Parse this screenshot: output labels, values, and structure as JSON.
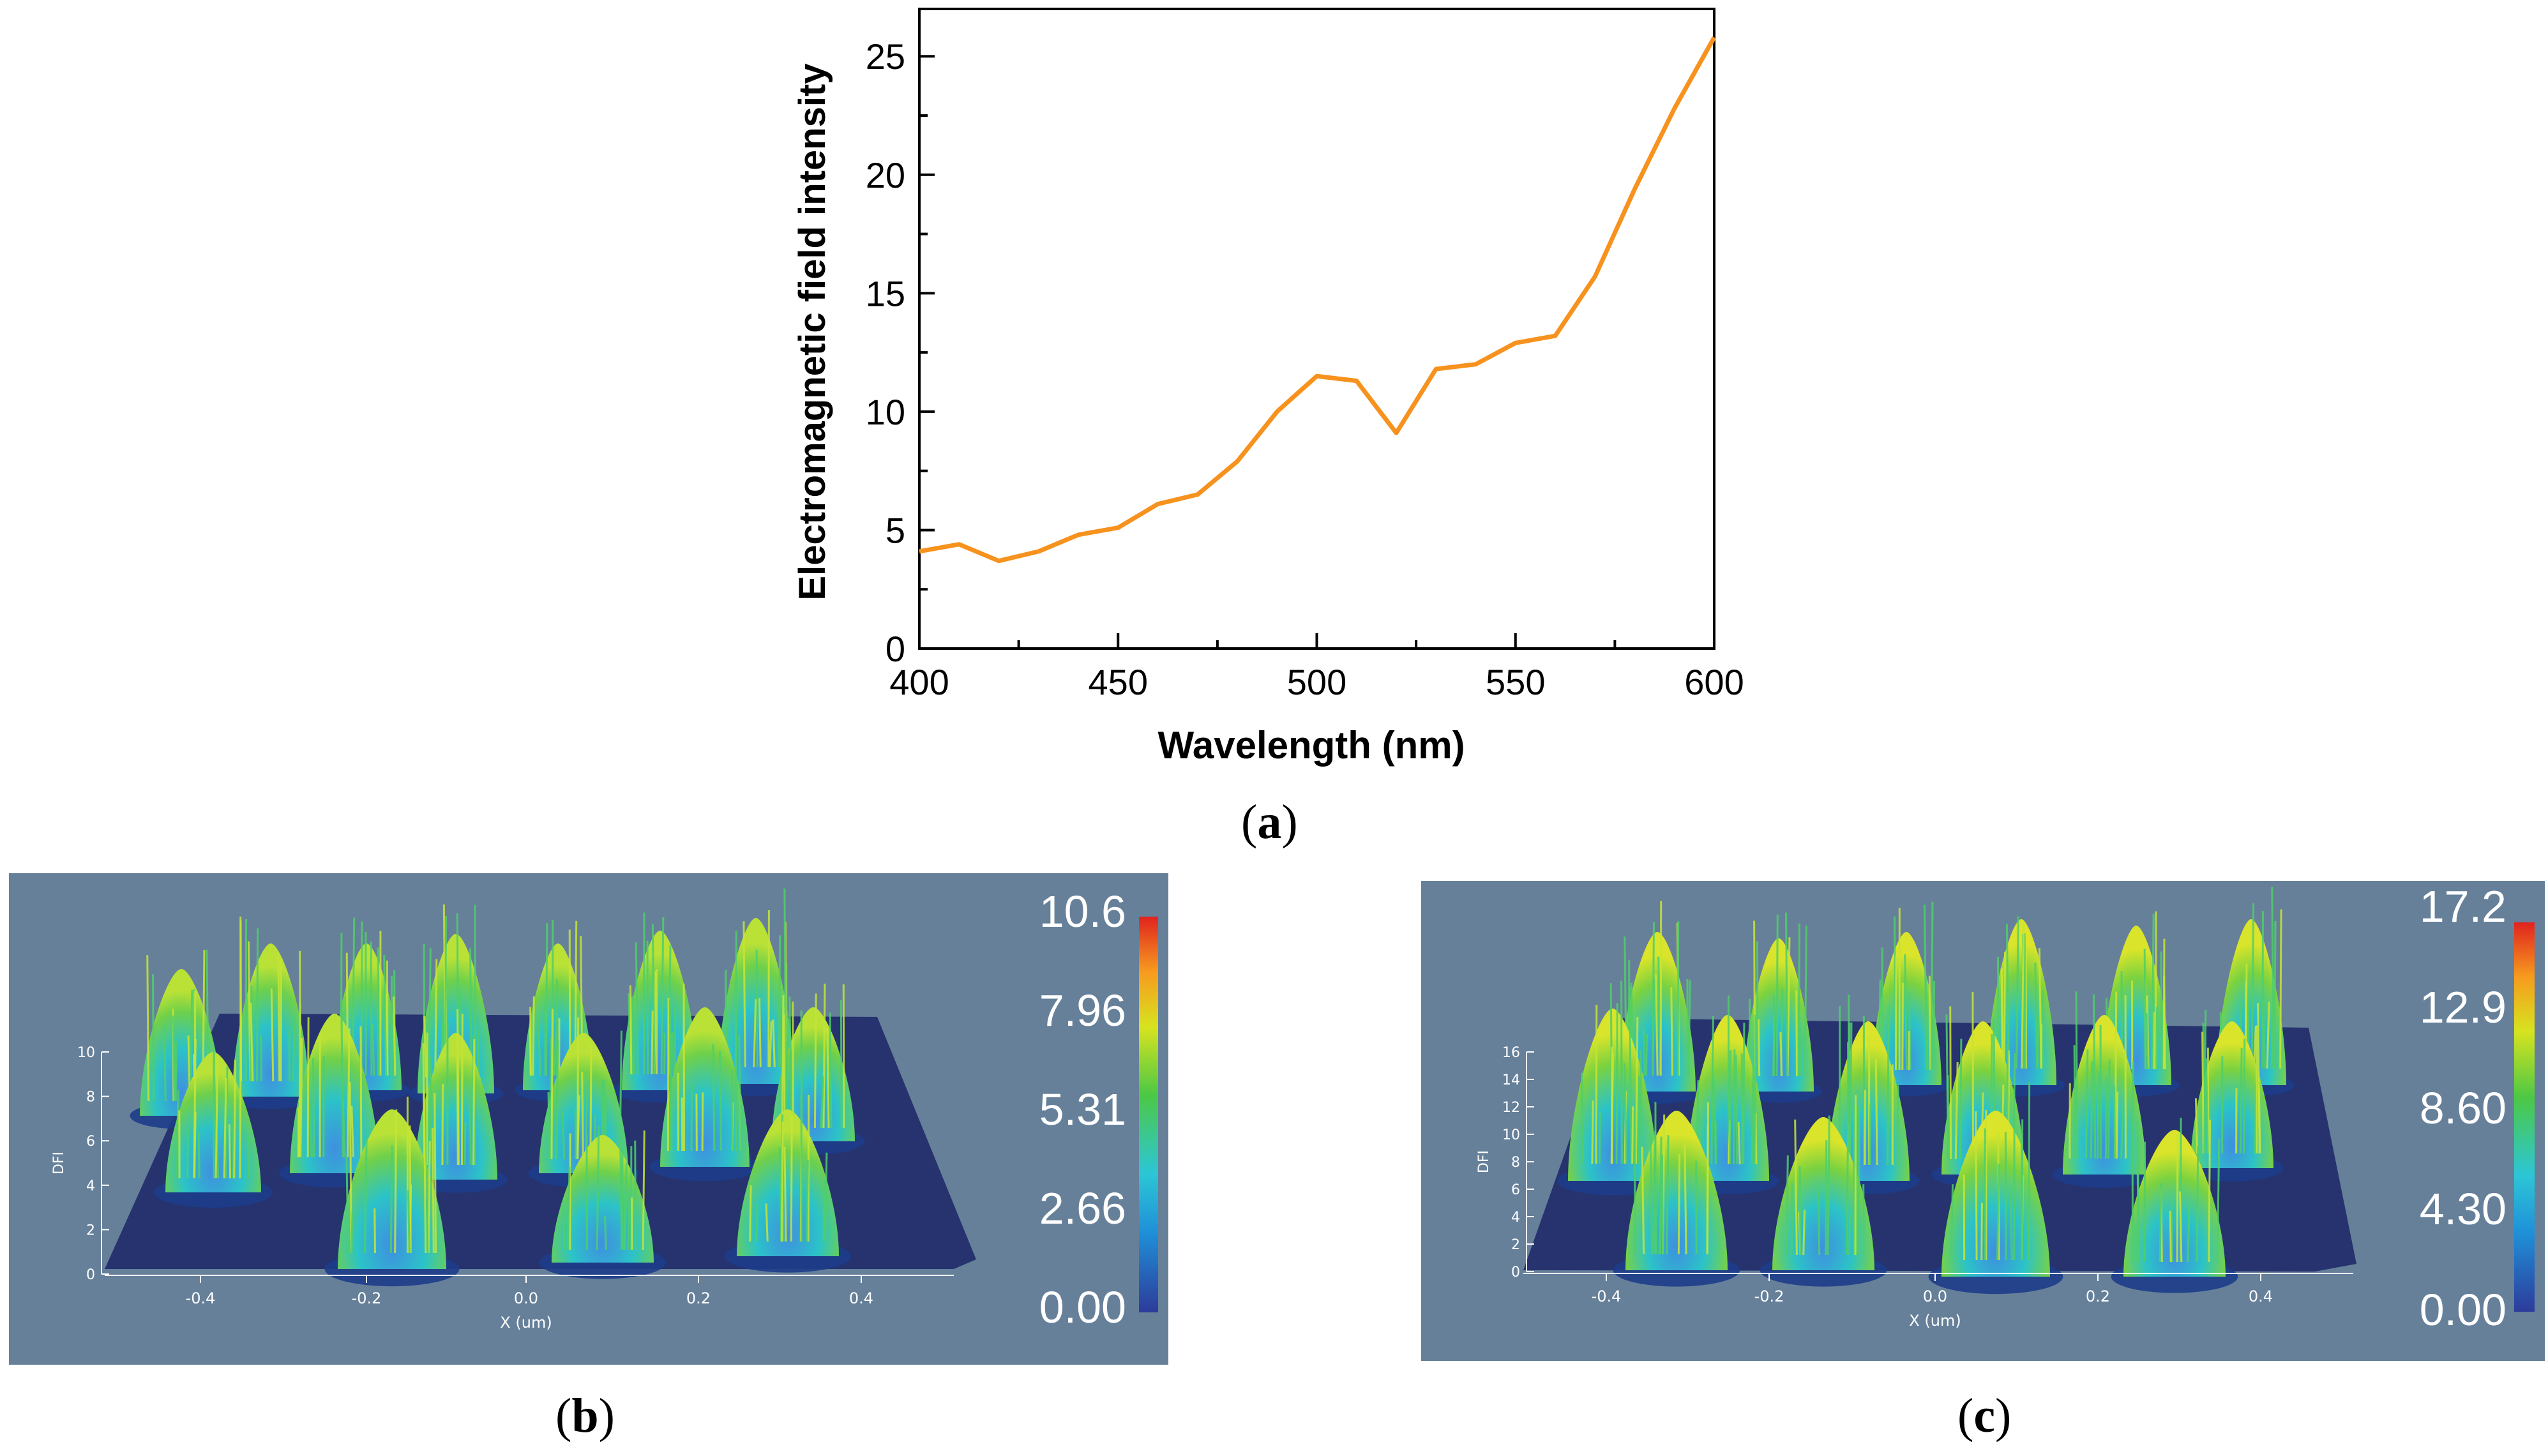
{
  "colors": {
    "line": "#f7921e",
    "panel_bg": "#66809a",
    "axis": "#000000"
  },
  "chart_data": [
    {
      "panel": "a",
      "type": "line",
      "title": "",
      "xlabel": "Wavelength (nm)",
      "ylabel": "Electromagnetic field intensity",
      "xlim": [
        400,
        600
      ],
      "ylim": [
        0,
        27
      ],
      "xticks": [
        400,
        450,
        500,
        550,
        600
      ],
      "yticks": [
        0,
        5,
        10,
        15,
        20,
        25
      ],
      "grid": false,
      "series": [
        {
          "x": [
            400,
            410,
            420,
            430,
            440,
            450,
            460,
            470,
            480,
            490,
            500,
            510,
            520,
            530,
            540,
            550,
            560,
            570,
            580,
            590,
            600
          ],
          "y": [
            4.1,
            4.4,
            3.7,
            4.1,
            4.8,
            5.1,
            6.1,
            6.5,
            7.9,
            10.0,
            11.5,
            11.3,
            9.1,
            11.8,
            12.0,
            12.9,
            13.2,
            15.7,
            19.4,
            22.8,
            25.8
          ]
        }
      ]
    },
    {
      "panel": "b",
      "type": "heatmap",
      "xlabel": "X (um)",
      "zlabel": "DFI",
      "xticks": [
        "-0.4",
        "-0.2",
        "0.0",
        "0.2",
        "0.4"
      ],
      "zticks": [
        "0",
        "2",
        "4",
        "6",
        "8",
        "10"
      ],
      "colorbar_ticks": [
        "10.6",
        "7.96",
        "5.31",
        "2.66",
        "0.00"
      ]
    },
    {
      "panel": "c",
      "type": "heatmap",
      "xlabel": "X (um)",
      "zlabel": "DFI",
      "xticks": [
        "-0.4",
        "-0.2",
        "0.0",
        "0.2",
        "0.4"
      ],
      "zticks": [
        "0",
        "2",
        "4",
        "6",
        "8",
        "10",
        "12",
        "14",
        "16"
      ],
      "colorbar_ticks": [
        "17.2",
        "12.9",
        "8.60",
        "4.30",
        "0.00"
      ]
    }
  ],
  "captions": {
    "a": "a",
    "b": "b",
    "c": "c"
  }
}
